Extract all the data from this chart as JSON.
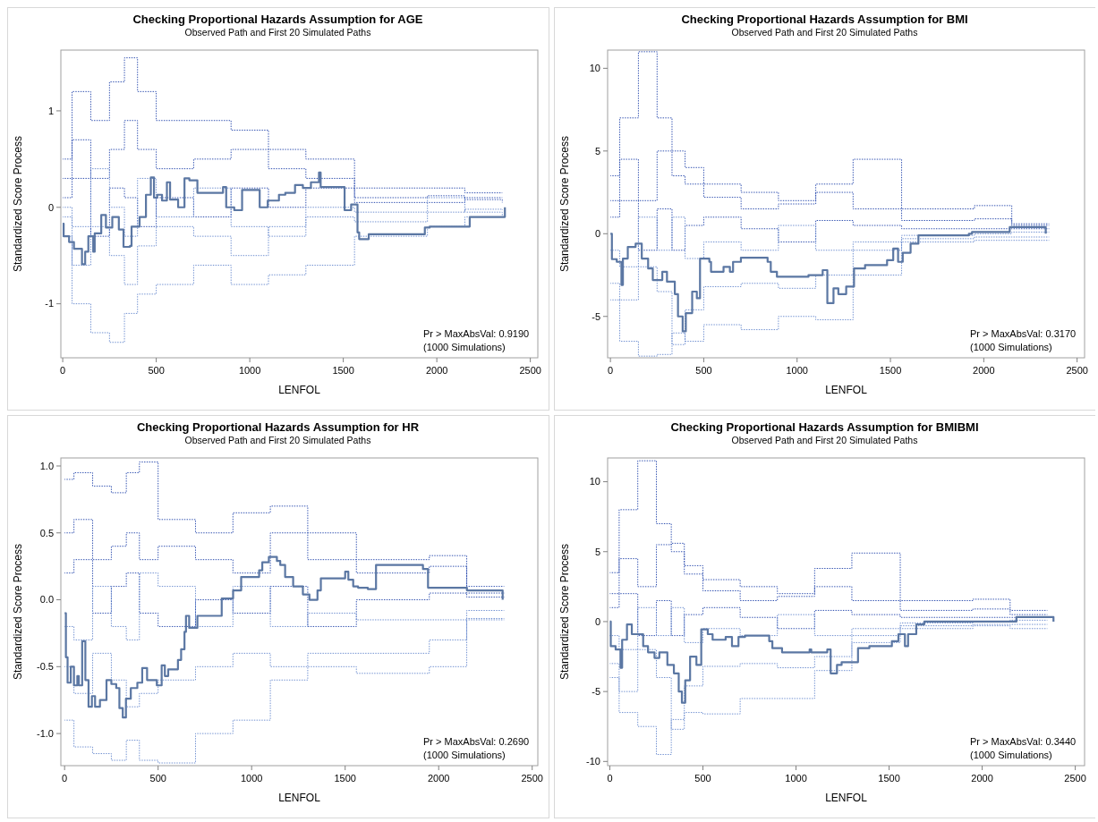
{
  "chart_data": [
    {
      "type": "step",
      "title": "Checking Proportional Hazards Assumption for AGE",
      "subtitle": "Observed Path and First 20 Simulated Paths",
      "xlabel": "LENFOL",
      "ylabel": "Standardized Score Process",
      "xlim": [
        -10,
        2540
      ],
      "ylim": [
        -1.56,
        1.63
      ],
      "xticks": [
        0,
        500,
        1000,
        1500,
        2000,
        2500
      ],
      "yticks": [
        -1,
        0,
        1
      ],
      "annotations": [
        "Pr > MaxAbsVal: 0.9190",
        "(1000 Simulations)"
      ],
      "series": [
        {
          "color": "#3050b0",
          "line_style": "dotted",
          "x": [
            0,
            50,
            150,
            250,
            330,
            400,
            500,
            700,
            900,
            1100,
            1300,
            1560,
            1950,
            2150,
            2350
          ],
          "values": [
            0.3,
            1.2,
            0.9,
            1.3,
            1.55,
            1.2,
            0.9,
            0.9,
            0.8,
            0.6,
            0.5,
            0.2,
            0.2,
            0.15,
            0.15
          ]
        },
        {
          "color": "#6f8fd0",
          "line_style": "dotted",
          "x": [
            0,
            50,
            150,
            250,
            330,
            400,
            500,
            700,
            900,
            1100,
            1300,
            1560,
            1950,
            2150,
            2350
          ],
          "values": [
            0,
            -1.0,
            -1.3,
            -1.4,
            -1.1,
            -0.9,
            -0.8,
            -0.6,
            -0.8,
            -0.7,
            -0.6,
            -0.3,
            -0.2,
            -0.1,
            -0.05
          ]
        },
        {
          "color": "#3050b0",
          "line_style": "dotted",
          "x": [
            0,
            50,
            150,
            250,
            330,
            400,
            500,
            700,
            900,
            1100,
            1300,
            1560,
            1950,
            2150,
            2350
          ],
          "values": [
            0.5,
            0.7,
            0.3,
            0.6,
            0.9,
            0.6,
            0.4,
            0.5,
            0.6,
            0.4,
            0.3,
            0.1,
            0.12,
            0.08,
            0.05
          ]
        },
        {
          "color": "#6f8fd0",
          "line_style": "dotted",
          "x": [
            0,
            50,
            150,
            250,
            330,
            400,
            500,
            700,
            900,
            1100,
            1300,
            1560,
            1950,
            2150,
            2350
          ],
          "values": [
            -0.3,
            -0.6,
            -0.2,
            -0.5,
            -0.8,
            -0.4,
            -0.2,
            -0.3,
            -0.5,
            -0.2,
            -0.1,
            -0.15,
            -0.05,
            -0.02,
            -0.03
          ]
        },
        {
          "color": "#3050b0",
          "line_style": "dotted",
          "x": [
            0,
            50,
            150,
            250,
            330,
            400,
            500,
            700,
            900,
            1100,
            1300,
            1560,
            1950,
            2150,
            2350
          ],
          "values": [
            0.1,
            0.3,
            -0.3,
            0.2,
            0.1,
            -0.2,
            0.1,
            -0.1,
            0.2,
            0.0,
            0.2,
            0.05,
            0.05,
            0.1,
            0.1
          ]
        },
        {
          "color": "#6f8fd0",
          "line_style": "dotted",
          "x": [
            0,
            50,
            150,
            250,
            330,
            400,
            500,
            700,
            900,
            1100,
            1300,
            1560,
            1950,
            2150,
            2350
          ],
          "values": [
            -0.1,
            -0.2,
            0.4,
            0,
            -0.3,
            0.3,
            -0.1,
            0.2,
            -0.2,
            -0.3,
            0,
            -0.05,
            0.1,
            -0.05,
            -0.05
          ]
        },
        {
          "color": "#5b77a3",
          "line_style": "solid",
          "x": [
            0,
            5,
            34,
            60,
            103,
            120,
            137,
            163,
            171,
            206,
            231,
            265,
            300,
            325,
            360,
            368,
            411,
            445,
            471,
            488,
            505,
            531,
            557,
            574,
            617,
            651,
            677,
            720,
            857,
            874,
            917,
            959,
            1053,
            1096,
            1156,
            1190,
            1242,
            1284,
            1327,
            1370,
            1379,
            1507,
            1542,
            1576,
            1585,
            1636,
            1936,
            1962,
            2176,
            2364
          ],
          "values": [
            -0.17,
            -0.3,
            -0.36,
            -0.43,
            -0.59,
            -0.46,
            -0.3,
            -0.46,
            -0.27,
            -0.08,
            -0.21,
            -0.1,
            -0.23,
            -0.41,
            -0.4,
            -0.2,
            -0.1,
            0.13,
            0.31,
            0.1,
            0.13,
            0.07,
            0.26,
            0.08,
            0,
            0.3,
            0.28,
            0.15,
            0.21,
            0,
            -0.03,
            0.18,
            0,
            0.07,
            0.13,
            0.15,
            0.23,
            0.2,
            0.26,
            0.36,
            0.21,
            -0.03,
            0.03,
            -0.26,
            -0.33,
            -0.28,
            -0.21,
            -0.2,
            -0.1,
            0
          ]
        }
      ]
    },
    {
      "type": "step",
      "title": "Checking Proportional Hazards Assumption for BMI",
      "subtitle": "Observed Path and First 20 Simulated Paths",
      "xlabel": "LENFOL",
      "ylabel": "Standardized Score Process",
      "xlim": [
        -15,
        2540
      ],
      "ylim": [
        -7.5,
        11.1
      ],
      "xticks": [
        0,
        500,
        1000,
        1500,
        2000,
        2500
      ],
      "yticks": [
        -5,
        0,
        5,
        10
      ],
      "annotations": [
        "Pr > MaxAbsVal: 0.3170",
        "(1000 Simulations)"
      ],
      "series": [
        {
          "color": "#3050b0",
          "line_style": "dotted",
          "x": [
            0,
            50,
            150,
            250,
            330,
            400,
            500,
            700,
            900,
            1100,
            1300,
            1560,
            1950,
            2150,
            2350
          ],
          "values": [
            2,
            7,
            11,
            7,
            5,
            4,
            3,
            2.5,
            2,
            3,
            4.5,
            1.5,
            1.7,
            0.6,
            0.6
          ]
        },
        {
          "color": "#6f8fd0",
          "line_style": "dotted",
          "x": [
            0,
            50,
            150,
            250,
            330,
            400,
            500,
            700,
            900,
            1100,
            1300,
            1560,
            1950,
            2150,
            2350
          ],
          "values": [
            -4,
            -6.5,
            -7.4,
            -7.3,
            -6,
            -6.5,
            -5.5,
            -5.8,
            -5,
            -5.2,
            -2.5,
            -0.5,
            -0.4,
            -0.4,
            -0.4
          ]
        },
        {
          "color": "#3050b0",
          "line_style": "dotted",
          "x": [
            0,
            50,
            150,
            250,
            330,
            400,
            500,
            700,
            900,
            1100,
            1300,
            1560,
            1950,
            2150,
            2350
          ],
          "values": [
            3.5,
            4.5,
            2,
            5,
            3.5,
            3,
            2.2,
            1.5,
            1.8,
            2.5,
            1.5,
            0.8,
            0.9,
            0.5,
            0.5
          ]
        },
        {
          "color": "#6f8fd0",
          "line_style": "dotted",
          "x": [
            0,
            50,
            150,
            250,
            330,
            400,
            500,
            700,
            900,
            1100,
            1300,
            1560,
            1950,
            2150,
            2350
          ],
          "values": [
            -3,
            -4,
            -2,
            -3.5,
            -6.7,
            -4.6,
            -3.2,
            -3,
            -3.3,
            -2.5,
            -1,
            -0.3,
            -0.2,
            -0.2,
            -0.2
          ]
        },
        {
          "color": "#3050b0",
          "line_style": "dotted",
          "x": [
            0,
            50,
            150,
            250,
            330,
            400,
            500,
            700,
            900,
            1100,
            1300,
            1560,
            1950,
            2150,
            2350
          ],
          "values": [
            1,
            2,
            -1,
            1.5,
            -1,
            0.5,
            1,
            0.3,
            -0.5,
            0.8,
            0.5,
            0.3,
            0.3,
            0.3,
            0.3
          ]
        },
        {
          "color": "#6f8fd0",
          "line_style": "dotted",
          "x": [
            0,
            50,
            150,
            250,
            330,
            400,
            500,
            700,
            900,
            1100,
            1300,
            1560,
            1950,
            2150,
            2350
          ],
          "values": [
            -1,
            -2,
            1,
            -1,
            1,
            -1.5,
            -0.5,
            -1,
            0.5,
            -1,
            -0.5,
            -0.1,
            0,
            0.1,
            0.1
          ]
        },
        {
          "color": "#5b77a3",
          "line_style": "solid",
          "x": [
            0,
            8,
            34,
            59,
            67,
            93,
            135,
            168,
            202,
            227,
            278,
            303,
            345,
            362,
            387,
            404,
            438,
            463,
            480,
            530,
            539,
            606,
            640,
            657,
            699,
            842,
            859,
            892,
            1061,
            1137,
            1162,
            1195,
            1221,
            1263,
            1305,
            1364,
            1482,
            1515,
            1541,
            1566,
            1608,
            1650,
            1920,
            1937,
            2139,
            2332
          ],
          "values": [
            0,
            -1.54,
            -1.7,
            -3.1,
            -1.5,
            -0.8,
            -0.6,
            -1.5,
            -2.1,
            -2.8,
            -2.3,
            -2.9,
            -3.65,
            -5,
            -5.9,
            -4.8,
            -3.5,
            -3.9,
            -1.5,
            -1.7,
            -2.3,
            -2,
            -2.3,
            -1.7,
            -1.45,
            -1.7,
            -2.3,
            -2.6,
            -2.5,
            -2.2,
            -4.2,
            -3.3,
            -3.65,
            -3.2,
            -2.1,
            -1.9,
            -1.6,
            -0.9,
            -1.7,
            -1.15,
            -0.6,
            -0.1,
            0,
            0.1,
            0.4,
            0
          ]
        }
      ]
    },
    {
      "type": "step",
      "title": "Checking Proportional Hazards Assumption for HR",
      "subtitle": "Observed Path and First 20 Simulated Paths",
      "xlabel": "LENFOL",
      "ylabel": "Standardized Score Process",
      "xlim": [
        -20,
        2530
      ],
      "ylim": [
        -1.24,
        1.06
      ],
      "xticks": [
        0,
        500,
        1000,
        1500,
        2000,
        2500
      ],
      "yticks": [
        {
          "value": -1,
          "label": "-1.0"
        },
        {
          "value": -0.5,
          "label": "-0.5"
        },
        {
          "value": 0,
          "label": "0.0"
        },
        {
          "value": 0.5,
          "label": "0.5"
        },
        {
          "value": 1,
          "label": "1.0"
        }
      ],
      "annotations": [
        "Pr > MaxAbsVal: 0.2690",
        "(1000 Simulations)"
      ],
      "series": [
        {
          "color": "#3050b0",
          "line_style": "dotted",
          "x": [
            0,
            50,
            150,
            250,
            330,
            400,
            500,
            700,
            900,
            1100,
            1300,
            1560,
            1950,
            2150,
            2350
          ],
          "values": [
            0.9,
            0.95,
            0.85,
            0.8,
            0.95,
            1.03,
            0.6,
            0.5,
            0.65,
            0.7,
            0.5,
            0.3,
            0.33,
            0.1,
            0.1
          ]
        },
        {
          "color": "#6f8fd0",
          "line_style": "dotted",
          "x": [
            0,
            50,
            150,
            250,
            330,
            400,
            500,
            700,
            900,
            1100,
            1300,
            1560,
            1950,
            2150,
            2350
          ],
          "values": [
            -0.9,
            -1.1,
            -1.15,
            -1.2,
            -1.05,
            -1.2,
            -1.22,
            -1.0,
            -0.9,
            -0.6,
            -0.5,
            -0.55,
            -0.5,
            -0.15,
            -0.15
          ]
        },
        {
          "color": "#3050b0",
          "line_style": "dotted",
          "x": [
            0,
            50,
            150,
            250,
            330,
            400,
            500,
            700,
            900,
            1100,
            1300,
            1560,
            1950,
            2150,
            2350
          ],
          "values": [
            0.5,
            0.6,
            0.3,
            0.4,
            0.5,
            0.3,
            0.4,
            0.3,
            0.2,
            0.5,
            0.3,
            0.2,
            0.25,
            0.05,
            0.05
          ]
        },
        {
          "color": "#6f8fd0",
          "line_style": "dotted",
          "x": [
            0,
            50,
            150,
            250,
            330,
            400,
            500,
            700,
            900,
            1100,
            1300,
            1560,
            1950,
            2150,
            2350
          ],
          "values": [
            -0.5,
            -0.7,
            -0.4,
            -0.6,
            -0.8,
            -0.7,
            -0.6,
            -0.5,
            -0.4,
            -0.5,
            -0.4,
            -0.4,
            -0.3,
            -0.14,
            -0.14
          ]
        },
        {
          "color": "#3050b0",
          "line_style": "dotted",
          "x": [
            0,
            50,
            150,
            250,
            330,
            400,
            500,
            700,
            900,
            1100,
            1300,
            1560,
            1950,
            2150,
            2350
          ],
          "values": [
            0.2,
            0.3,
            -0.1,
            0.1,
            0.2,
            -0.1,
            -0.2,
            0,
            -0.1,
            0.1,
            -0.2,
            0,
            0.05,
            0.02,
            0.02
          ]
        },
        {
          "color": "#6f8fd0",
          "line_style": "dotted",
          "x": [
            0,
            50,
            150,
            250,
            330,
            400,
            500,
            700,
            900,
            1100,
            1300,
            1560,
            1950,
            2150,
            2350
          ],
          "values": [
            -0.2,
            -0.3,
            0.1,
            -0.2,
            -0.3,
            0.2,
            0.1,
            -0.2,
            0.1,
            -0.2,
            -0.1,
            -0.15,
            -0.15,
            -0.08,
            -0.08
          ]
        },
        {
          "color": "#5b77a3",
          "line_style": "solid",
          "x": [
            0,
            7,
            16,
            33,
            50,
            68,
            76,
            94,
            111,
            128,
            146,
            163,
            189,
            224,
            250,
            276,
            293,
            311,
            328,
            354,
            389,
            415,
            441,
            493,
            519,
            536,
            554,
            606,
            623,
            641,
            649,
            666,
            710,
            840,
            901,
            944,
            1040,
            1057,
            1092,
            1135,
            1153,
            1179,
            1222,
            1274,
            1309,
            1352,
            1370,
            1500,
            1517,
            1543,
            1569,
            1621,
            1665,
            1916,
            1943,
            2151,
            2342
          ],
          "values": [
            -0.1,
            -0.43,
            -0.62,
            -0.5,
            -0.64,
            -0.57,
            -0.64,
            -0.31,
            -0.6,
            -0.8,
            -0.72,
            -0.8,
            -0.75,
            -0.6,
            -0.63,
            -0.66,
            -0.81,
            -0.88,
            -0.74,
            -0.66,
            -0.62,
            -0.51,
            -0.6,
            -0.64,
            -0.49,
            -0.57,
            -0.52,
            -0.45,
            -0.37,
            -0.24,
            -0.12,
            -0.21,
            -0.12,
            0.01,
            0.07,
            0.17,
            0.22,
            0.28,
            0.32,
            0.29,
            0.26,
            0.17,
            0.1,
            0.04,
            0,
            0.07,
            0.16,
            0.21,
            0.15,
            0.1,
            0.09,
            0.08,
            0.26,
            0.23,
            0.09,
            0.07,
            0
          ]
        }
      ]
    },
    {
      "type": "step",
      "title": "Checking Proportional Hazards Assumption for BMIBMI",
      "subtitle": "Observed Path and First 20 Simulated Paths",
      "xlabel": "LENFOL",
      "ylabel": "Standardized Score Process",
      "xlim": [
        -12,
        2550
      ],
      "ylim": [
        -10.3,
        11.7
      ],
      "xticks": [
        0,
        500,
        1000,
        1500,
        2000,
        2500
      ],
      "yticks": [
        -10,
        -5,
        0,
        5,
        10
      ],
      "annotations": [
        "Pr > MaxAbsVal: 0.3440",
        "(1000 Simulations)"
      ],
      "series": [
        {
          "color": "#3050b0",
          "line_style": "dotted",
          "x": [
            0,
            50,
            150,
            250,
            330,
            400,
            500,
            700,
            900,
            1100,
            1300,
            1560,
            1950,
            2150,
            2350
          ],
          "values": [
            2,
            8,
            11.5,
            7,
            5,
            4,
            3,
            2.5,
            2,
            3.8,
            4.9,
            1.5,
            1.6,
            0.8,
            0.8
          ]
        },
        {
          "color": "#6f8fd0",
          "line_style": "dotted",
          "x": [
            0,
            50,
            150,
            250,
            330,
            400,
            500,
            700,
            900,
            1100,
            1300,
            1560,
            1950,
            2150,
            2350
          ],
          "values": [
            -4,
            -6.5,
            -7.5,
            -9.5,
            -7,
            -6.5,
            -6.6,
            -5.5,
            -5.5,
            -3.5,
            -1.5,
            -0.5,
            -0.3,
            -0.5,
            -0.5
          ]
        },
        {
          "color": "#3050b0",
          "line_style": "dotted",
          "x": [
            0,
            50,
            150,
            250,
            330,
            400,
            500,
            700,
            900,
            1100,
            1300,
            1560,
            1950,
            2150,
            2350
          ],
          "values": [
            3.5,
            4.5,
            2.5,
            5.5,
            5.6,
            3.4,
            2.2,
            1.5,
            1.8,
            2.5,
            1.5,
            0.8,
            0.9,
            0.5,
            0.5
          ]
        },
        {
          "color": "#6f8fd0",
          "line_style": "dotted",
          "x": [
            0,
            50,
            150,
            250,
            330,
            400,
            500,
            700,
            900,
            1100,
            1300,
            1560,
            1950,
            2150,
            2350
          ],
          "values": [
            -3,
            -5,
            -2,
            -4,
            -7.7,
            -4.6,
            -3.2,
            -3,
            -3.3,
            -2.5,
            -1,
            -0.3,
            -0.2,
            -0.2,
            -0.2
          ]
        },
        {
          "color": "#3050b0",
          "line_style": "dotted",
          "x": [
            0,
            50,
            150,
            250,
            330,
            400,
            500,
            700,
            900,
            1100,
            1300,
            1560,
            1950,
            2150,
            2350
          ],
          "values": [
            1,
            2,
            -1,
            1.5,
            -1,
            0.5,
            1,
            0.3,
            -0.5,
            0.8,
            0.5,
            0.3,
            0.3,
            0.3,
            0.3
          ]
        },
        {
          "color": "#6f8fd0",
          "line_style": "dotted",
          "x": [
            0,
            50,
            150,
            250,
            330,
            400,
            500,
            700,
            900,
            1100,
            1300,
            1560,
            1950,
            2150,
            2350
          ],
          "values": [
            -1,
            -2,
            1,
            -1,
            1,
            -1.5,
            -0.5,
            -1,
            0.5,
            -1,
            -0.5,
            -0.1,
            0,
            0.1,
            0.1
          ]
        },
        {
          "color": "#5b77a3",
          "line_style": "solid",
          "x": [
            0,
            5,
            31,
            57,
            66,
            92,
            118,
            179,
            205,
            240,
            266,
            309,
            344,
            370,
            387,
            405,
            431,
            465,
            491,
            526,
            552,
            622,
            656,
            691,
            726,
            856,
            873,
            925,
            1073,
            1082,
            1168,
            1186,
            1220,
            1245,
            1333,
            1394,
            1515,
            1550,
            1585,
            1602,
            1646,
            1689,
            2184,
            2383
          ],
          "values": [
            0,
            -1.76,
            -2,
            -3.3,
            -1.3,
            -0.2,
            -0.9,
            -1.76,
            -2.2,
            -2.6,
            -2.2,
            -3.1,
            -3.7,
            -5,
            -5.8,
            -4.2,
            -2.5,
            -3.1,
            -0.55,
            -0.9,
            -1.3,
            -1.1,
            -1.76,
            -1.1,
            -1,
            -1.4,
            -1.9,
            -2.2,
            -2,
            -2.2,
            -2,
            -3.7,
            -3.1,
            -2.9,
            -1.9,
            -1.76,
            -1.4,
            -0.9,
            -1.76,
            -0.9,
            -0.2,
            0,
            0.33,
            0
          ]
        }
      ]
    }
  ]
}
